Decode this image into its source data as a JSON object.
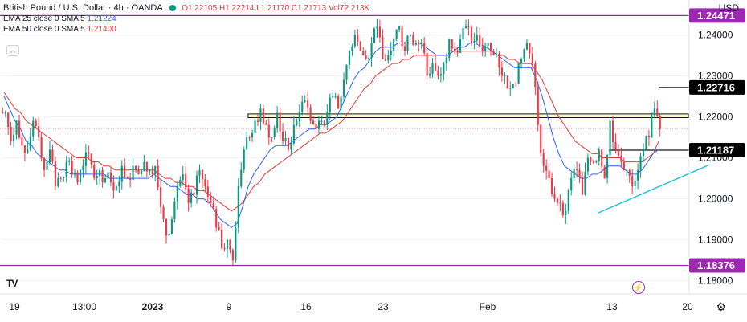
{
  "header": {
    "symbol": "British Pound / U.S. Dollar · 4h · OANDA",
    "ohlc": "O1.22105 H1.22214 L1.21170 C1.21713 Vol72.213K",
    "ema25": {
      "label": "EMA 25 close 0 SMA 5",
      "value": "1.21224"
    },
    "ema50": {
      "label": "EMA 50 close 0 SMA 5",
      "value": "1.21400"
    },
    "currency": "USD"
  },
  "colors": {
    "bull": "#089981",
    "bear": "#f23645",
    "ema25": "#2962ff",
    "ema50": "#e53935",
    "level": "#9c27b0",
    "trend": "#26c6da",
    "zone_fill": "#fff9c4"
  },
  "chart_data": {
    "type": "candlestick",
    "title": "British Pound / U.S. Dollar",
    "interval": "4h",
    "source": "OANDA",
    "ylim": [
      1.1768,
      1.2485
    ],
    "y_ticks": [
      {
        "value": 1.24,
        "label": "1.24000"
      },
      {
        "value": 1.23,
        "label": "1.23000"
      },
      {
        "value": 1.22,
        "label": "1.22000"
      },
      {
        "value": 1.21,
        "label": "1.21000"
      },
      {
        "value": 1.2,
        "label": "1.20000"
      },
      {
        "value": 1.19,
        "label": "1.19000"
      },
      {
        "value": 1.18,
        "label": "1.18000"
      }
    ],
    "x_ticks": [
      {
        "label": "19",
        "bold": false
      },
      {
        "label": "13:00",
        "bold": false
      },
      {
        "label": "2023",
        "bold": true
      },
      {
        "label": "9",
        "bold": false
      },
      {
        "label": "16",
        "bold": false
      },
      {
        "label": "23",
        "bold": false
      },
      {
        "label": "Feb",
        "bold": false
      },
      {
        "label": "13",
        "bold": false
      },
      {
        "label": "20",
        "bold": false
      }
    ],
    "close_path": [
      1.221,
      1.214,
      1.219,
      1.213,
      1.212,
      1.219,
      1.215,
      1.207,
      1.212,
      1.203,
      1.205,
      1.209,
      1.206,
      1.204,
      1.208,
      1.211,
      1.205,
      1.207,
      1.205,
      1.204,
      1.203,
      1.208,
      1.205,
      1.208,
      1.206,
      1.209,
      1.207,
      1.208,
      1.198,
      1.191,
      1.195,
      1.203,
      1.206,
      1.199,
      1.201,
      1.207,
      1.203,
      1.199,
      1.193,
      1.188,
      1.19,
      1.185,
      1.203,
      1.212,
      1.215,
      1.219,
      1.222,
      1.218,
      1.215,
      1.221,
      1.214,
      1.212,
      1.218,
      1.221,
      1.224,
      1.219,
      1.217,
      1.219,
      1.221,
      1.225,
      1.222,
      1.229,
      1.236,
      1.24,
      1.236,
      1.234,
      1.238,
      1.242,
      1.234,
      1.235,
      1.239,
      1.242,
      1.236,
      1.24,
      1.238,
      1.238,
      1.23,
      1.233,
      1.23,
      1.233,
      1.239,
      1.236,
      1.239,
      1.242,
      1.238,
      1.24,
      1.236,
      1.238,
      1.235,
      1.232,
      1.23,
      1.227,
      1.228,
      1.234,
      1.238,
      1.233,
      1.218,
      1.208,
      1.205,
      1.2,
      1.199,
      1.197,
      1.205,
      1.207,
      1.201,
      1.21,
      1.209,
      1.212,
      1.205,
      1.219,
      1.212,
      1.209,
      1.207,
      1.203,
      1.207,
      1.212,
      1.215,
      1.222,
      1.217
    ],
    "ema25_path": [
      1.225,
      1.222,
      1.219,
      1.217,
      1.214,
      1.213,
      1.211,
      1.21,
      1.209,
      1.208,
      1.207,
      1.207,
      1.206,
      1.206,
      1.206,
      1.206,
      1.206,
      1.206,
      1.206,
      1.205,
      1.205,
      1.205,
      1.205,
      1.205,
      1.205,
      1.205,
      1.205,
      1.206,
      1.205,
      1.204,
      1.203,
      1.203,
      1.202,
      1.201,
      1.201,
      1.2,
      1.2,
      1.199,
      1.197,
      1.195,
      1.194,
      1.193,
      1.194,
      1.198,
      1.203,
      1.206,
      1.208,
      1.21,
      1.212,
      1.213,
      1.213,
      1.213,
      1.214,
      1.215,
      1.216,
      1.217,
      1.217,
      1.218,
      1.218,
      1.219,
      1.22,
      1.223,
      1.226,
      1.229,
      1.231,
      1.232,
      1.234,
      1.236,
      1.237,
      1.237,
      1.237,
      1.238,
      1.238,
      1.238,
      1.238,
      1.238,
      1.237,
      1.236,
      1.235,
      1.235,
      1.235,
      1.236,
      1.237,
      1.237,
      1.238,
      1.238,
      1.237,
      1.237,
      1.236,
      1.235,
      1.234,
      1.233,
      1.232,
      1.232,
      1.232,
      1.232,
      1.229,
      1.225,
      1.22,
      1.215,
      1.211,
      1.208,
      1.207,
      1.206,
      1.205,
      1.205,
      1.206,
      1.206,
      1.207,
      1.208,
      1.208,
      1.208,
      1.207,
      1.206,
      1.206,
      1.207,
      1.209,
      1.211,
      1.212
    ],
    "ema50_path": [
      1.226,
      1.224,
      1.222,
      1.221,
      1.219,
      1.218,
      1.217,
      1.216,
      1.215,
      1.214,
      1.213,
      1.212,
      1.211,
      1.21,
      1.21,
      1.21,
      1.209,
      1.209,
      1.208,
      1.208,
      1.207,
      1.207,
      1.207,
      1.207,
      1.207,
      1.207,
      1.207,
      1.207,
      1.206,
      1.205,
      1.205,
      1.204,
      1.204,
      1.203,
      1.203,
      1.202,
      1.202,
      1.201,
      1.2,
      1.199,
      1.198,
      1.197,
      1.198,
      1.199,
      1.201,
      1.203,
      1.204,
      1.206,
      1.207,
      1.208,
      1.209,
      1.21,
      1.211,
      1.212,
      1.213,
      1.214,
      1.215,
      1.216,
      1.216,
      1.217,
      1.218,
      1.219,
      1.221,
      1.223,
      1.225,
      1.227,
      1.228,
      1.23,
      1.231,
      1.232,
      1.233,
      1.233,
      1.234,
      1.234,
      1.235,
      1.235,
      1.235,
      1.235,
      1.235,
      1.235,
      1.235,
      1.236,
      1.236,
      1.236,
      1.236,
      1.236,
      1.236,
      1.236,
      1.236,
      1.235,
      1.235,
      1.234,
      1.234,
      1.233,
      1.233,
      1.233,
      1.231,
      1.229,
      1.226,
      1.223,
      1.22,
      1.218,
      1.216,
      1.214,
      1.213,
      1.212,
      1.211,
      1.211,
      1.21,
      1.21,
      1.21,
      1.21,
      1.209,
      1.209,
      1.209,
      1.209,
      1.21,
      1.211,
      1.214
    ],
    "candle_seed": 7,
    "horizontal_lines": [
      {
        "value": 1.24471,
        "label": "1.24471",
        "color": "#9c27b0",
        "style": "level"
      },
      {
        "value": 1.18376,
        "label": "1.18376",
        "color": "#9c27b0",
        "style": "level"
      },
      {
        "value": 1.22716,
        "label": "1.22716",
        "color": "#131722",
        "style": "marker",
        "from": 118,
        "to": 120
      },
      {
        "value": 1.21187,
        "label": "1.21187",
        "color": "#131722",
        "style": "marker",
        "from": 109,
        "to": 120
      },
      {
        "value": 1.21713,
        "color": "#f23645",
        "style": "dotted"
      }
    ],
    "zone": {
      "top": 1.2207,
      "bottom": 1.2198,
      "from": 44,
      "to": 131
    },
    "trendline": {
      "x1": 107,
      "y1": 1.1965,
      "x2": 127,
      "y2": 1.2082
    }
  }
}
